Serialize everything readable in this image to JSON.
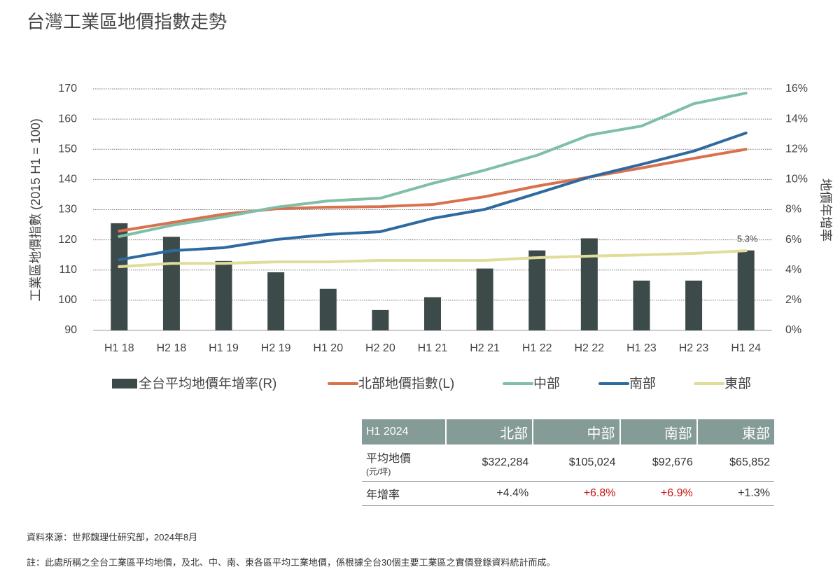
{
  "chart_data": {
    "type": "combo",
    "title": "台灣工業區地價指數走勢",
    "y_label": "工業區地價指數 (2015 H1 = 100)",
    "y2_label": "地價年增率",
    "categories": [
      "H1 18",
      "H2 18",
      "H1 19",
      "H2 19",
      "H1 20",
      "H2 20",
      "H1 21",
      "H2 21",
      "H1 22",
      "H2 22",
      "H1 23",
      "H2 23",
      "H1 24"
    ],
    "ylim": [
      90,
      170
    ],
    "yticks": [
      90,
      100,
      110,
      120,
      130,
      140,
      150,
      160,
      170
    ],
    "y2lim": [
      0,
      16
    ],
    "y2ticks": [
      {
        "value": 0,
        "label": "0%"
      },
      {
        "value": 2,
        "label": "2%"
      },
      {
        "value": 4,
        "label": "4%"
      },
      {
        "value": 6,
        "label": "6%"
      },
      {
        "value": 8,
        "label": "8%"
      },
      {
        "value": 10,
        "label": "10%"
      },
      {
        "value": 12,
        "label": "12%"
      },
      {
        "value": 14,
        "label": "14%"
      },
      {
        "value": 16,
        "label": "16%"
      }
    ],
    "grid": true,
    "series": [
      {
        "name": "全台平均地價年增率(R)",
        "type": "bar",
        "axis": "y2",
        "color": "#3d4a4a",
        "values": [
          7.1,
          6.2,
          4.6,
          3.85,
          2.75,
          1.35,
          2.2,
          4.1,
          5.3,
          6.1,
          3.3,
          3.3,
          5.3
        ],
        "value_labels": [
          null,
          null,
          null,
          null,
          null,
          null,
          null,
          null,
          null,
          null,
          null,
          null,
          "5.3%"
        ]
      },
      {
        "name": "北部地價指數(L)",
        "type": "line",
        "color": "#d9704e",
        "values": [
          122.9,
          125.7,
          128.5,
          130.3,
          130.8,
          131,
          131.7,
          134.3,
          137.8,
          140.8,
          143.8,
          147,
          150
        ]
      },
      {
        "name": "中部",
        "type": "line",
        "color": "#7fbfa8",
        "values": [
          121.1,
          124.8,
          127.6,
          130.8,
          132.9,
          133.8,
          138.7,
          143.1,
          148,
          154.7,
          157.7,
          165.1,
          168.6
        ]
      },
      {
        "name": "南部",
        "type": "line",
        "color": "#2e6aa0",
        "values": [
          113.4,
          116.4,
          117.4,
          120.1,
          121.8,
          122.7,
          127.1,
          130.1,
          135.4,
          140.8,
          145,
          149.4,
          155.4
        ]
      },
      {
        "name": "東部",
        "type": "line",
        "color": "#e0dc9a",
        "values": [
          111.1,
          112.2,
          112.2,
          112.7,
          112.7,
          113.2,
          113.2,
          113.2,
          114.1,
          114.6,
          115,
          115.5,
          116.4
        ]
      }
    ]
  },
  "table": {
    "header": [
      "H1 2024",
      "北部",
      "中部",
      "南部",
      "東部"
    ],
    "rows": [
      {
        "label": "平均地價",
        "sublabel": "(元/坪)",
        "cells": [
          "$322,284",
          "$105,024",
          "$92,676",
          "$65,852"
        ],
        "colors": [
          "#333333",
          "#333333",
          "#333333",
          "#333333"
        ]
      },
      {
        "label": "年增率",
        "cells": [
          "+4.4%",
          "+6.8%",
          "+6.9%",
          "+1.3%"
        ],
        "colors": [
          "#333333",
          "#cc1111",
          "#cc1111",
          "#333333"
        ]
      }
    ]
  },
  "source": "資料來源：世邦魏理仕研究部，2024年8月",
  "note": "註：此處所稱之全台工業區平均地價，及北、中、南、東各區平均工業地價，係根據全台30個主要工業區之實價登錄資料統計而成。"
}
